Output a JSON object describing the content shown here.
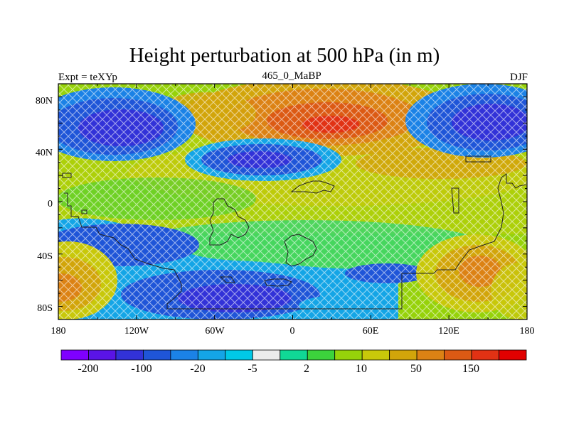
{
  "title": "Height perturbation at 500 hPa (in m)",
  "left_label": "Expt = teXYp",
  "center_label": "465_0_MaBP",
  "right_label": "DJF",
  "x_ticks": [
    "180",
    "120W",
    "60W",
    "0",
    "60E",
    "120E",
    "180"
  ],
  "y_ticks": [
    "80N",
    "40N",
    "0",
    "40S",
    "80S"
  ],
  "colorbar": {
    "colors": [
      "#7f00ff",
      "#5a14e6",
      "#3232d8",
      "#1f55d8",
      "#1b82e6",
      "#14a5e6",
      "#00c8e6",
      "#ebebeb",
      "#10d896",
      "#3cd23c",
      "#96d20a",
      "#c8c80a",
      "#d2a50a",
      "#dc8214",
      "#dc5a14",
      "#e13214",
      "#e10000"
    ],
    "labels": [
      "-200",
      "-100",
      "-20",
      "-5",
      "2",
      "10",
      "50",
      "150"
    ]
  },
  "map": {
    "projection": "cylindrical equidistant",
    "lon_range": [
      -180,
      180
    ],
    "lat_range": [
      -90,
      90
    ],
    "fill_style": "cross-hatched raster cells",
    "features": [
      {
        "name": "strong-negative-northwest",
        "lon": -140,
        "lat": 62,
        "level": "-100"
      },
      {
        "name": "strong-negative-northeast",
        "lon": 155,
        "lat": 62,
        "level": "-100"
      },
      {
        "name": "negative-north-atlantic",
        "lon": -20,
        "lat": 30,
        "level": "-100"
      },
      {
        "name": "positive-arctic-eurasia",
        "lon": 15,
        "lat": 62,
        "level": "150"
      },
      {
        "name": "negative-southern-belt",
        "lon": -60,
        "lat": -60,
        "level": "-100"
      },
      {
        "name": "positive-south-pacific-west",
        "lon": -165,
        "lat": -60,
        "level": "50"
      },
      {
        "name": "positive-south-pacific-east",
        "lon": 140,
        "lat": -50,
        "level": "50"
      }
    ]
  }
}
